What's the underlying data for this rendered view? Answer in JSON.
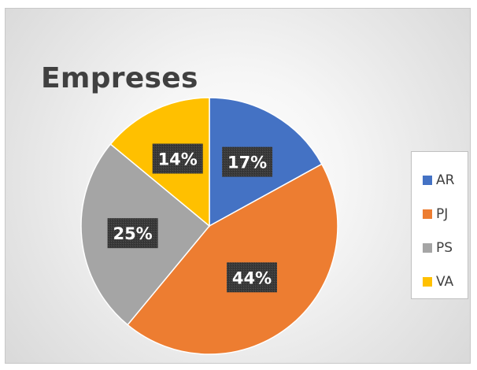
{
  "chart_data": {
    "type": "pie",
    "title": "Empreses",
    "categories": [
      "AR",
      "PJ",
      "PS",
      "VA"
    ],
    "values": [
      17,
      44,
      25,
      14
    ],
    "value_labels": [
      "17%",
      "44%",
      "25%",
      "14%"
    ],
    "colors": [
      "#4472c4",
      "#ed7d31",
      "#a5a5a5",
      "#ffc000"
    ],
    "start_angle": "12 o'clock, clockwise",
    "legend": "right"
  }
}
